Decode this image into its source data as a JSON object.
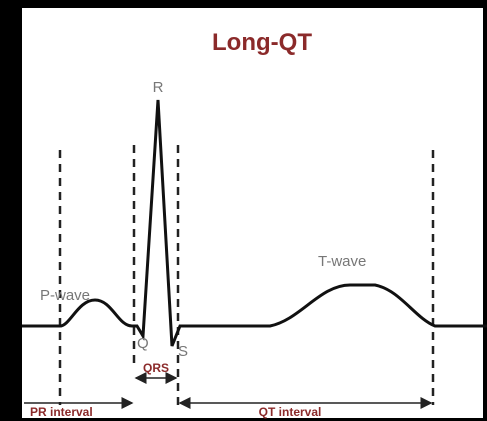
{
  "title": "Long-QT",
  "labels": {
    "r": "R",
    "p_wave": "P-wave",
    "q": "Q",
    "s": "S",
    "t_wave": "T-wave",
    "qrs": "QRS",
    "pr_interval": "PR interval",
    "qt_interval": "QT interval"
  }
}
